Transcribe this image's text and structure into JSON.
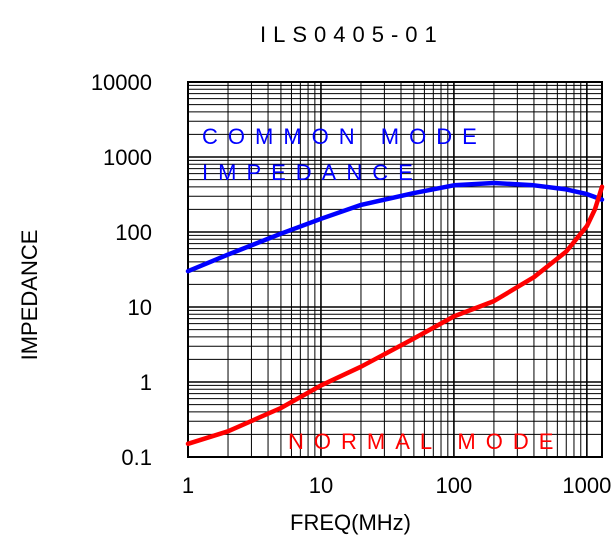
{
  "chart_data": {
    "type": "line",
    "title": "ILS0405-01",
    "xlabel": "FREQ(MHz)",
    "ylabel": "IMPEDANCE",
    "x_scale": "log",
    "y_scale": "log",
    "xlim": [
      1,
      1300
    ],
    "ylim": [
      0.1,
      10000
    ],
    "x_ticks": [
      "1",
      "10",
      "100",
      "1000"
    ],
    "y_ticks": [
      "10000",
      "1000",
      "100",
      "10",
      "1",
      "0.1"
    ],
    "grid": true,
    "series": [
      {
        "name": "COMMON MODE IMPEDANCE",
        "color": "#0000ff",
        "x": [
          1,
          2,
          5,
          10,
          20,
          50,
          100,
          200,
          400,
          700,
          1000,
          1300
        ],
        "y": [
          30,
          50,
          95,
          150,
          230,
          330,
          420,
          450,
          420,
          370,
          320,
          270
        ]
      },
      {
        "name": "NORMAL MODE",
        "color": "#ff0000",
        "x": [
          1,
          2,
          5,
          10,
          20,
          50,
          100,
          200,
          400,
          700,
          1000,
          1150,
          1300
        ],
        "y": [
          0.15,
          0.22,
          0.45,
          0.9,
          1.6,
          3.8,
          7.5,
          12,
          25,
          55,
          120,
          200,
          400
        ]
      }
    ],
    "annotations": [
      "COMMON MODE",
      "IMPEDANCE",
      "NORMAL MODE"
    ]
  }
}
